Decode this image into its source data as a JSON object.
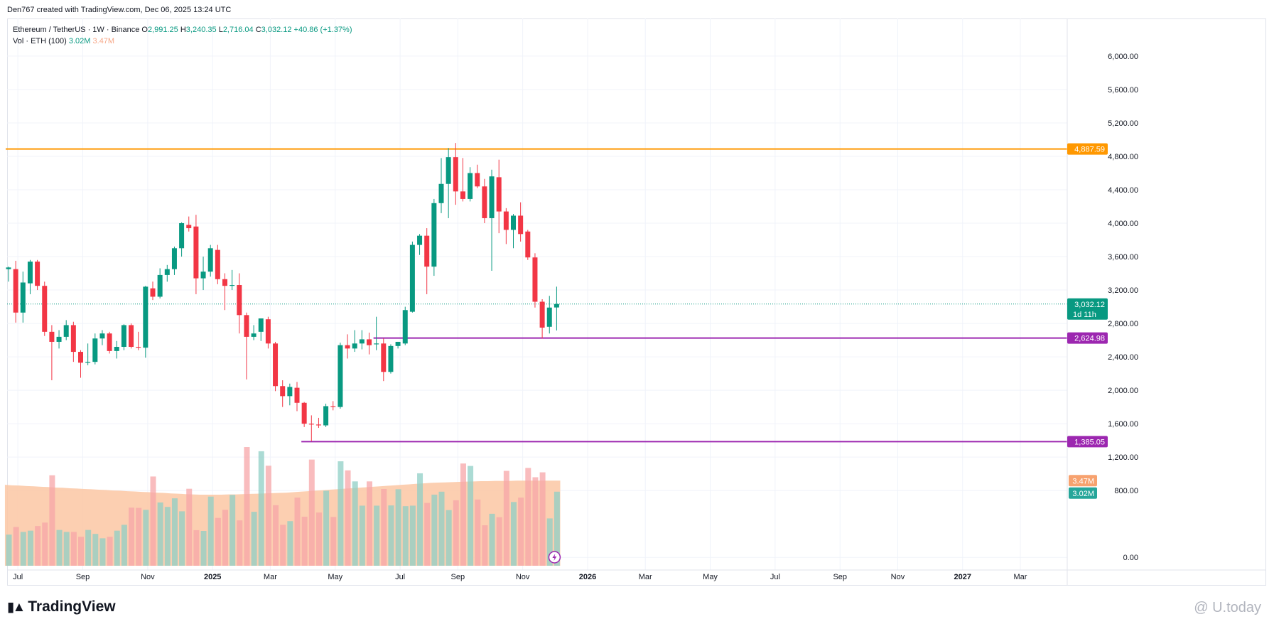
{
  "header": {
    "credit": "Den767 created with TradingView.com, Dec 06, 2025 13:24 UTC"
  },
  "legend": {
    "symbol": "Ethereum / TetherUS · 1W · Binance",
    "open_label": "O",
    "open": "2,991.25",
    "high_label": "H",
    "high": "3,240.35",
    "low_label": "L",
    "low": "2,716.04",
    "close_label": "C",
    "close": "3,032.12",
    "change": "+40.86 (+1.37%)",
    "vol_label": "Vol · ETH (100)",
    "vol_value": "3.02M",
    "vol_ma_value": "3.47M"
  },
  "chart_data": {
    "type": "candlestick",
    "title": "Ethereum / TetherUS · 1W · Binance",
    "price_range": [
      -100,
      6450
    ],
    "y_ticks": [
      {
        "value": 6000,
        "label": "6,000.00"
      },
      {
        "value": 5600,
        "label": "5,600.00"
      },
      {
        "value": 5200,
        "label": "5,200.00"
      },
      {
        "value": 4800,
        "label": "4,800.00"
      },
      {
        "value": 4400,
        "label": "4,400.00"
      },
      {
        "value": 4000,
        "label": "4,000.00"
      },
      {
        "value": 3600,
        "label": "3,600.00"
      },
      {
        "value": 3200,
        "label": "3,200.00"
      },
      {
        "value": 2800,
        "label": "2,800.00"
      },
      {
        "value": 2400,
        "label": "2,400.00"
      },
      {
        "value": 2000,
        "label": "2,000.00"
      },
      {
        "value": 1600,
        "label": "1,600.00"
      },
      {
        "value": 1200,
        "label": "1,200.00"
      },
      {
        "value": 800,
        "label": "800.00"
      },
      {
        "value": 0,
        "label": "0.00"
      }
    ],
    "x_ticks": [
      {
        "week": 1,
        "label": "Jul",
        "bold": false
      },
      {
        "week": 10,
        "label": "Sep",
        "bold": false
      },
      {
        "week": 19,
        "label": "Nov",
        "bold": false
      },
      {
        "week": 28,
        "label": "2025",
        "bold": true
      },
      {
        "week": 36,
        "label": "Mar",
        "bold": false
      },
      {
        "week": 45,
        "label": "May",
        "bold": false
      },
      {
        "week": 54,
        "label": "Jul",
        "bold": false
      },
      {
        "week": 62,
        "label": "Sep",
        "bold": false
      },
      {
        "week": 71,
        "label": "Nov",
        "bold": false
      },
      {
        "week": 80,
        "label": "2026",
        "bold": true
      },
      {
        "week": 88,
        "label": "Mar",
        "bold": false
      },
      {
        "week": 97,
        "label": "May",
        "bold": false
      },
      {
        "week": 106,
        "label": "Jul",
        "bold": false
      },
      {
        "week": 115,
        "label": "Sep",
        "bold": false
      },
      {
        "week": 123,
        "label": "Nov",
        "bold": false
      },
      {
        "week": 132,
        "label": "2027",
        "bold": true
      },
      {
        "week": 140,
        "label": "Mar",
        "bold": false
      }
    ],
    "candles": [
      {
        "o": 3450,
        "h": 3480,
        "l": 3300,
        "c": 3470
      },
      {
        "o": 3450,
        "h": 3550,
        "l": 2810,
        "c": 2930
      },
      {
        "o": 2930,
        "h": 3420,
        "l": 2810,
        "c": 3290
      },
      {
        "o": 3280,
        "h": 3560,
        "l": 3150,
        "c": 3540
      },
      {
        "o": 3540,
        "h": 3560,
        "l": 3200,
        "c": 3250
      },
      {
        "o": 3250,
        "h": 3300,
        "l": 2650,
        "c": 2700
      },
      {
        "o": 2700,
        "h": 2780,
        "l": 2120,
        "c": 2580
      },
      {
        "o": 2580,
        "h": 2720,
        "l": 2500,
        "c": 2640
      },
      {
        "o": 2640,
        "h": 2840,
        "l": 2600,
        "c": 2780
      },
      {
        "o": 2780,
        "h": 2820,
        "l": 2340,
        "c": 2460
      },
      {
        "o": 2460,
        "h": 2480,
        "l": 2150,
        "c": 2330
      },
      {
        "o": 2330,
        "h": 2560,
        "l": 2300,
        "c": 2340
      },
      {
        "o": 2340,
        "h": 2680,
        "l": 2310,
        "c": 2620
      },
      {
        "o": 2620,
        "h": 2720,
        "l": 2540,
        "c": 2680
      },
      {
        "o": 2680,
        "h": 2700,
        "l": 2440,
        "c": 2470
      },
      {
        "o": 2470,
        "h": 2590,
        "l": 2380,
        "c": 2520
      },
      {
        "o": 2520,
        "h": 2790,
        "l": 2480,
        "c": 2780
      },
      {
        "o": 2780,
        "h": 2800,
        "l": 2500,
        "c": 2520
      },
      {
        "o": 2520,
        "h": 2700,
        "l": 2480,
        "c": 2510
      },
      {
        "o": 2510,
        "h": 3250,
        "l": 2390,
        "c": 3240
      },
      {
        "o": 3220,
        "h": 3300,
        "l": 3080,
        "c": 3120
      },
      {
        "o": 3120,
        "h": 3460,
        "l": 3100,
        "c": 3380
      },
      {
        "o": 3380,
        "h": 3500,
        "l": 3300,
        "c": 3450
      },
      {
        "o": 3450,
        "h": 3720,
        "l": 3380,
        "c": 3700
      },
      {
        "o": 3700,
        "h": 4010,
        "l": 3600,
        "c": 4000
      },
      {
        "o": 3980,
        "h": 4080,
        "l": 3900,
        "c": 3940
      },
      {
        "o": 3960,
        "h": 4100,
        "l": 3150,
        "c": 3340
      },
      {
        "o": 3340,
        "h": 3600,
        "l": 3200,
        "c": 3420
      },
      {
        "o": 3420,
        "h": 3740,
        "l": 3360,
        "c": 3700
      },
      {
        "o": 3680,
        "h": 3740,
        "l": 3270,
        "c": 3330
      },
      {
        "o": 3330,
        "h": 3400,
        "l": 2960,
        "c": 3250
      },
      {
        "o": 3250,
        "h": 3440,
        "l": 3200,
        "c": 3260
      },
      {
        "o": 3260,
        "h": 3400,
        "l": 2680,
        "c": 2900
      },
      {
        "o": 2900,
        "h": 2930,
        "l": 2130,
        "c": 2640
      },
      {
        "o": 2640,
        "h": 2780,
        "l": 2600,
        "c": 2680
      },
      {
        "o": 2700,
        "h": 2850,
        "l": 2590,
        "c": 2860
      },
      {
        "o": 2850,
        "h": 2880,
        "l": 2500,
        "c": 2560
      },
      {
        "o": 2560,
        "h": 2580,
        "l": 1990,
        "c": 2050
      },
      {
        "o": 2050,
        "h": 2120,
        "l": 1800,
        "c": 1930
      },
      {
        "o": 1930,
        "h": 2080,
        "l": 1820,
        "c": 2040
      },
      {
        "o": 2030,
        "h": 2100,
        "l": 1750,
        "c": 1850
      },
      {
        "o": 1850,
        "h": 1860,
        "l": 1560,
        "c": 1600
      },
      {
        "o": 1600,
        "h": 1700,
        "l": 1390,
        "c": 1590
      },
      {
        "o": 1590,
        "h": 1670,
        "l": 1550,
        "c": 1580
      },
      {
        "o": 1580,
        "h": 1840,
        "l": 1560,
        "c": 1810
      },
      {
        "o": 1810,
        "h": 1870,
        "l": 1760,
        "c": 1800
      },
      {
        "o": 1800,
        "h": 2570,
        "l": 1780,
        "c": 2540
      },
      {
        "o": 2540,
        "h": 2670,
        "l": 2380,
        "c": 2500
      },
      {
        "o": 2500,
        "h": 2720,
        "l": 2460,
        "c": 2560
      },
      {
        "o": 2560,
        "h": 2720,
        "l": 2490,
        "c": 2610
      },
      {
        "o": 2610,
        "h": 2690,
        "l": 2430,
        "c": 2540
      },
      {
        "o": 2550,
        "h": 2880,
        "l": 2480,
        "c": 2560
      },
      {
        "o": 2560,
        "h": 2620,
        "l": 2110,
        "c": 2220
      },
      {
        "o": 2220,
        "h": 2550,
        "l": 2200,
        "c": 2530
      },
      {
        "o": 2530,
        "h": 2580,
        "l": 2500,
        "c": 2580
      },
      {
        "o": 2560,
        "h": 3000,
        "l": 2540,
        "c": 2960
      },
      {
        "o": 2940,
        "h": 3780,
        "l": 2930,
        "c": 3740
      },
      {
        "o": 3740,
        "h": 3870,
        "l": 3620,
        "c": 3850
      },
      {
        "o": 3850,
        "h": 3940,
        "l": 3150,
        "c": 3480
      },
      {
        "o": 3480,
        "h": 4290,
        "l": 3370,
        "c": 4240
      },
      {
        "o": 4240,
        "h": 4780,
        "l": 4120,
        "c": 4470
      },
      {
        "o": 4470,
        "h": 4900,
        "l": 4060,
        "c": 4790
      },
      {
        "o": 4790,
        "h": 4960,
        "l": 4220,
        "c": 4380
      },
      {
        "o": 4380,
        "h": 4780,
        "l": 4260,
        "c": 4290
      },
      {
        "o": 4290,
        "h": 4670,
        "l": 4260,
        "c": 4600
      },
      {
        "o": 4600,
        "h": 4700,
        "l": 4420,
        "c": 4440
      },
      {
        "o": 4440,
        "h": 4530,
        "l": 4000,
        "c": 4060
      },
      {
        "o": 4060,
        "h": 4640,
        "l": 3430,
        "c": 4560
      },
      {
        "o": 4550,
        "h": 4760,
        "l": 3880,
        "c": 4140
      },
      {
        "o": 4140,
        "h": 4180,
        "l": 3750,
        "c": 3920
      },
      {
        "o": 3920,
        "h": 4110,
        "l": 3700,
        "c": 4090
      },
      {
        "o": 4090,
        "h": 4250,
        "l": 3780,
        "c": 3870
      },
      {
        "o": 3900,
        "h": 3920,
        "l": 3560,
        "c": 3590
      },
      {
        "o": 3590,
        "h": 3640,
        "l": 2990,
        "c": 3060
      },
      {
        "o": 3060,
        "h": 3090,
        "l": 2620,
        "c": 2750
      },
      {
        "o": 2760,
        "h": 3130,
        "l": 2680,
        "c": 2990
      },
      {
        "o": 2991.25,
        "h": 3240.35,
        "l": 2716.04,
        "c": 3032.12
      }
    ],
    "volume_m": [
      1.27,
      1.58,
      1.38,
      1.43,
      1.62,
      1.76,
      3.69,
      1.46,
      1.38,
      1.38,
      1.18,
      1.46,
      1.3,
      1.12,
      1.18,
      1.43,
      1.67,
      2.37,
      2.36,
      2.28,
      3.64,
      2.58,
      2.4,
      2.75,
      2.22,
      3.14,
      1.45,
      1.42,
      2.82,
      1.95,
      2.28,
      2.89,
      1.85,
      4.84,
      2.2,
      4.67,
      4.08,
      2.47,
      1.67,
      1.82,
      2.78,
      2.0,
      4.33,
      2.17,
      3.06,
      1.99,
      4.26,
      3.89,
      3.44,
      2.45,
      3.44,
      2.45,
      3.13,
      2.46,
      3.12,
      2.43,
      2.45,
      3.77,
      2.56,
      2.9,
      3.02,
      2.27,
      2.67,
      4.17,
      4.07,
      2.7,
      1.65,
      2.12,
      1.98,
      3.87,
      2.6,
      2.78,
      3.99,
      3.61,
      3.81,
      1.93,
      3.02
    ],
    "volume_ma_m": [
      3.3,
      3.28,
      3.27,
      3.25,
      3.24,
      3.22,
      3.21,
      3.19,
      3.18,
      3.16,
      3.15,
      3.13,
      3.12,
      3.1,
      3.09,
      3.07,
      3.06,
      3.04,
      3.03,
      3.01,
      3.0,
      2.98,
      2.97,
      2.95,
      2.94,
      2.92,
      2.91,
      2.9,
      2.9,
      2.9,
      2.9,
      2.91,
      2.91,
      2.92,
      2.93,
      2.94,
      2.95,
      2.96,
      2.97,
      2.98,
      3.0,
      3.02,
      3.04,
      3.06,
      3.08,
      3.1,
      3.12,
      3.14,
      3.16,
      3.18,
      3.2,
      3.22,
      3.24,
      3.26,
      3.28,
      3.3,
      3.32,
      3.34,
      3.36,
      3.38,
      3.39,
      3.4,
      3.41,
      3.42,
      3.43,
      3.44,
      3.45,
      3.45,
      3.46,
      3.46,
      3.46,
      3.47,
      3.47,
      3.47,
      3.47,
      3.47,
      3.47
    ],
    "horizontal_levels": [
      {
        "name": "resistance-4887",
        "price": 4887.59,
        "label": "4,887.59",
        "color": "#ff9800",
        "start_week": 0
      },
      {
        "name": "support-2624",
        "price": 2624.98,
        "label": "2,624.98",
        "color": "#9c27b0",
        "start_week": 51
      },
      {
        "name": "support-1385",
        "price": 1385.05,
        "label": "1,385.05",
        "color": "#9c27b0",
        "start_week": 41
      }
    ],
    "last_price": {
      "label": "3,032.12",
      "countdown": "1d 11h",
      "color": "#089981"
    },
    "volume_tags": [
      {
        "name": "vol-ma-tag",
        "label": "3.47M",
        "color": "#f7a26f"
      },
      {
        "name": "vol-tag",
        "label": "3.02M",
        "color": "#26a69a"
      }
    ],
    "colors": {
      "up": "#089981",
      "down": "#f23645",
      "grid": "#f0f3fa",
      "vol_up": "#8fcfc6",
      "vol_down": "#f7a5a8",
      "vol_ma_fill": "#fcc7a3"
    }
  },
  "branding": {
    "logo_text": "TradingView",
    "watermark": "@ U.today"
  }
}
